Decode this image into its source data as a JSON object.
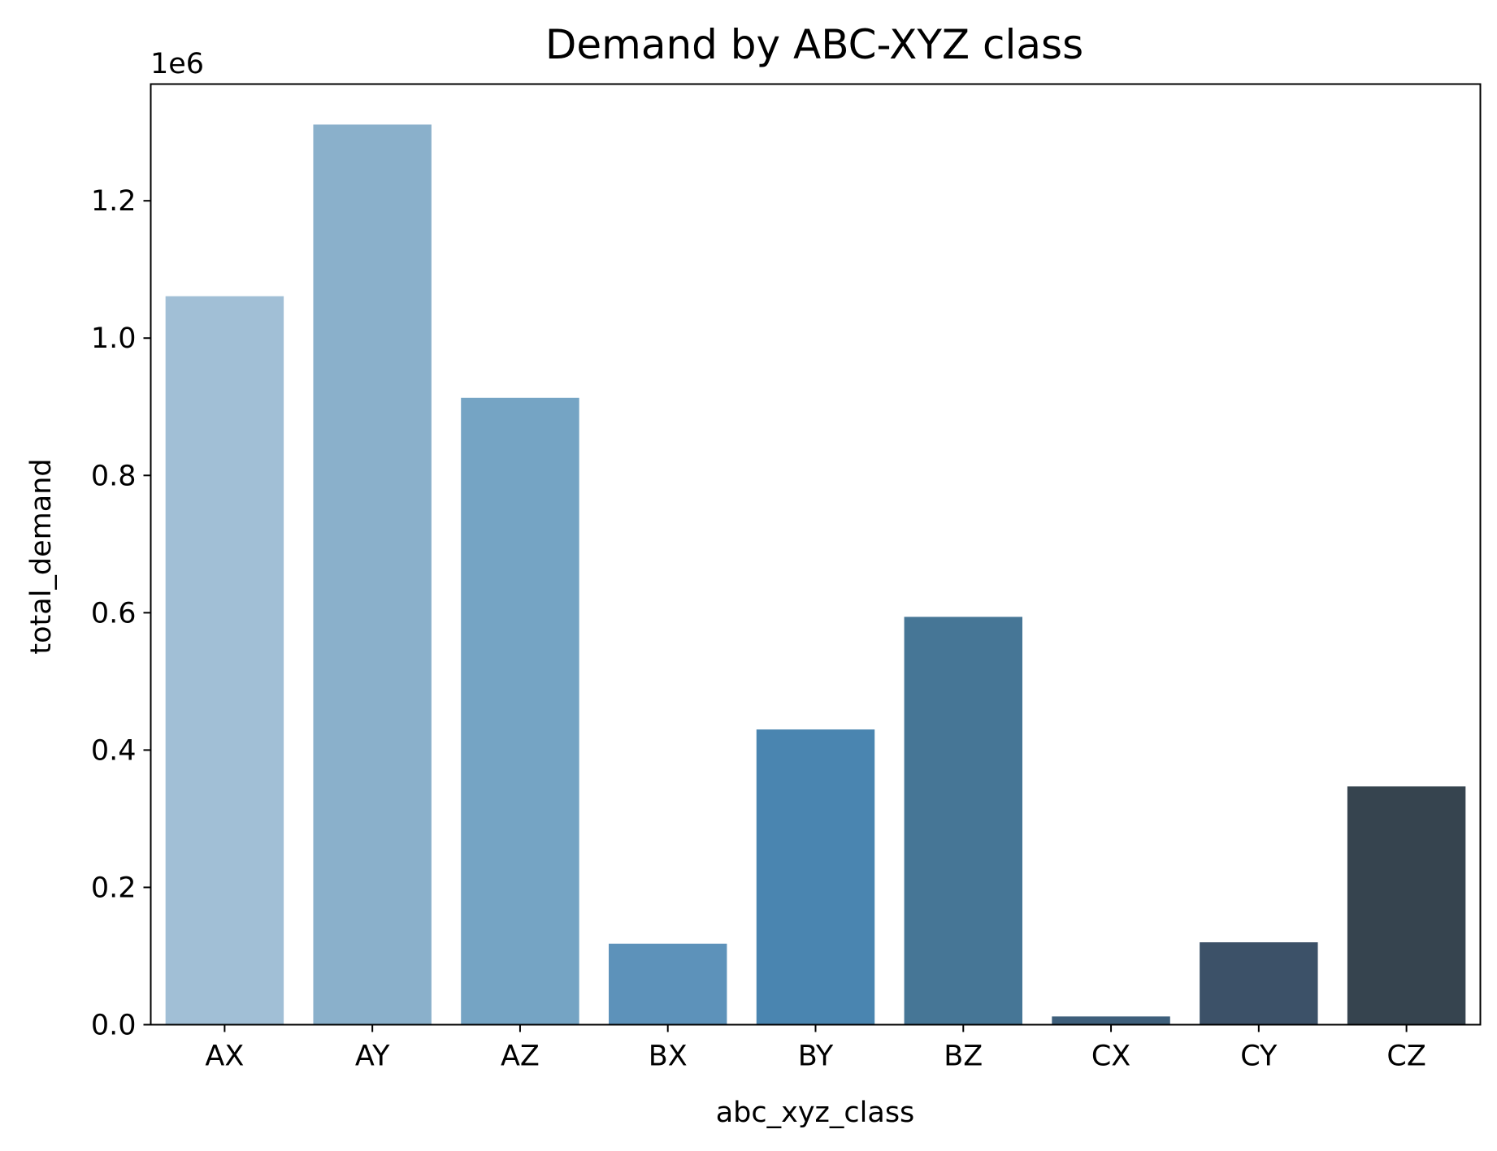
{
  "chart_data": {
    "type": "bar",
    "title": "Demand by ABC-XYZ class",
    "xlabel": "abc_xyz_class",
    "ylabel": "total_demand",
    "y_offset_label": "1e6",
    "categories": [
      "AX",
      "AY",
      "AZ",
      "BX",
      "BY",
      "BZ",
      "CX",
      "CY",
      "CZ"
    ],
    "values": [
      1.061,
      1.311,
      0.913,
      0.118,
      0.43,
      0.594,
      0.012,
      0.12,
      0.347
    ],
    "value_scale": 1000000,
    "ylim": [
      0,
      1.37
    ],
    "yticks": [
      0.0,
      0.2,
      0.4,
      0.6,
      0.8,
      1.0,
      1.2
    ],
    "ytick_labels": [
      "0.0",
      "0.2",
      "0.4",
      "0.6",
      "0.8",
      "1.0",
      "1.2"
    ],
    "colors": [
      "#a1bfd6",
      "#8ab0cb",
      "#75a4c4",
      "#5d92ba",
      "#4a85b0",
      "#467696",
      "#3e5f7b",
      "#3c5168",
      "#36444f"
    ],
    "grid": false,
    "legend": "none"
  }
}
